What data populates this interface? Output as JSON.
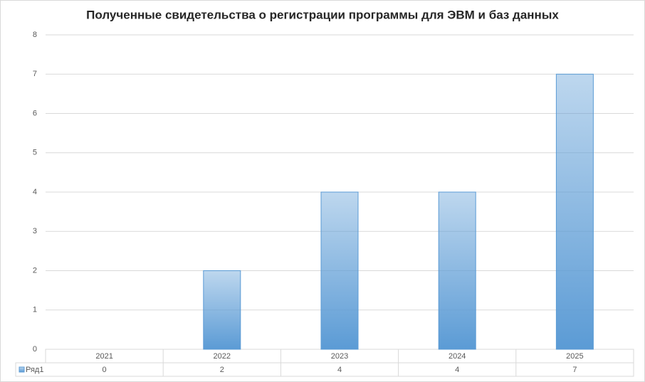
{
  "chart_data": {
    "type": "bar",
    "title": "Полученные свидетельства о регистрации программы для ЭВМ и баз данных",
    "categories": [
      "2021",
      "2022",
      "2023",
      "2024",
      "2025"
    ],
    "series": [
      {
        "name": "Ряд1",
        "color": "#5b9bd5",
        "values": [
          0,
          2,
          4,
          4,
          7
        ]
      }
    ],
    "ylim": [
      0,
      8
    ],
    "yticks": [
      0,
      1,
      2,
      3,
      4,
      5,
      6,
      7,
      8
    ],
    "grid": true
  }
}
